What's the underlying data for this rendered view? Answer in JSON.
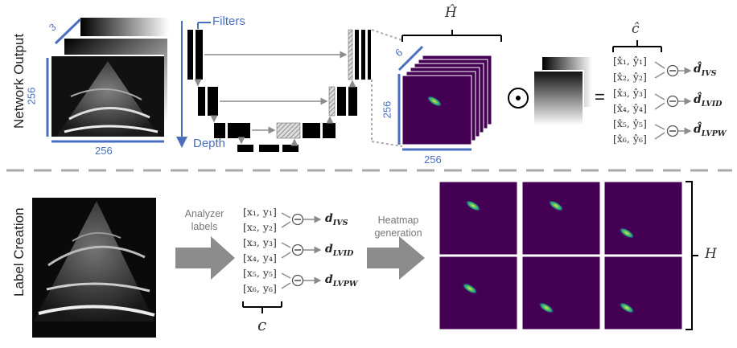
{
  "top_section": {
    "title": "Network Output",
    "input_stack": {
      "depth_label": "3",
      "height_label": "256",
      "width_label": "256"
    },
    "unet": {
      "filters_label": "Filters",
      "depth_label": "Depth"
    },
    "heatmap_stack": {
      "symbol": "Ĥ",
      "channels_label": "6",
      "height_label": "256",
      "width_label": "256"
    },
    "operator": "⊙",
    "equals": "=",
    "coords_symbol": "ĉ",
    "coords": [
      "[x̂₁, ŷ₁]",
      "[x̂₂, ŷ₂]",
      "[x̂₃, ŷ₃]",
      "[x̂₄, ŷ₄]",
      "[x̂₅, ŷ₅]",
      "[x̂₆, ŷ₆]"
    ],
    "minus": "−",
    "outputs": [
      {
        "main": "d̂",
        "sub": "IVS"
      },
      {
        "main": "d̂",
        "sub": "LVID"
      },
      {
        "main": "d̂",
        "sub": "LVPW"
      }
    ]
  },
  "bottom_section": {
    "title": "Label Creation",
    "arrow1_label": [
      "Analyzer",
      "labels"
    ],
    "coords": [
      "[x₁, y₁]",
      "[x₂, y₂]",
      "[x₃, y₃]",
      "[x₄, y₄]",
      "[x₅, y₅]",
      "[x₆, y₆]"
    ],
    "coords_symbol": "c",
    "minus": "−",
    "outputs": [
      {
        "main": "d",
        "sub": "IVS"
      },
      {
        "main": "d",
        "sub": "LVID"
      },
      {
        "main": "d",
        "sub": "LVPW"
      }
    ],
    "arrow2_label": [
      "Heatmap",
      "generation"
    ],
    "heatmap_symbol": "H"
  },
  "colors": {
    "accent_blue": "#4a6fbf",
    "heatmap_bg": "#440154",
    "arrow_gray": "#8c8c8c"
  }
}
